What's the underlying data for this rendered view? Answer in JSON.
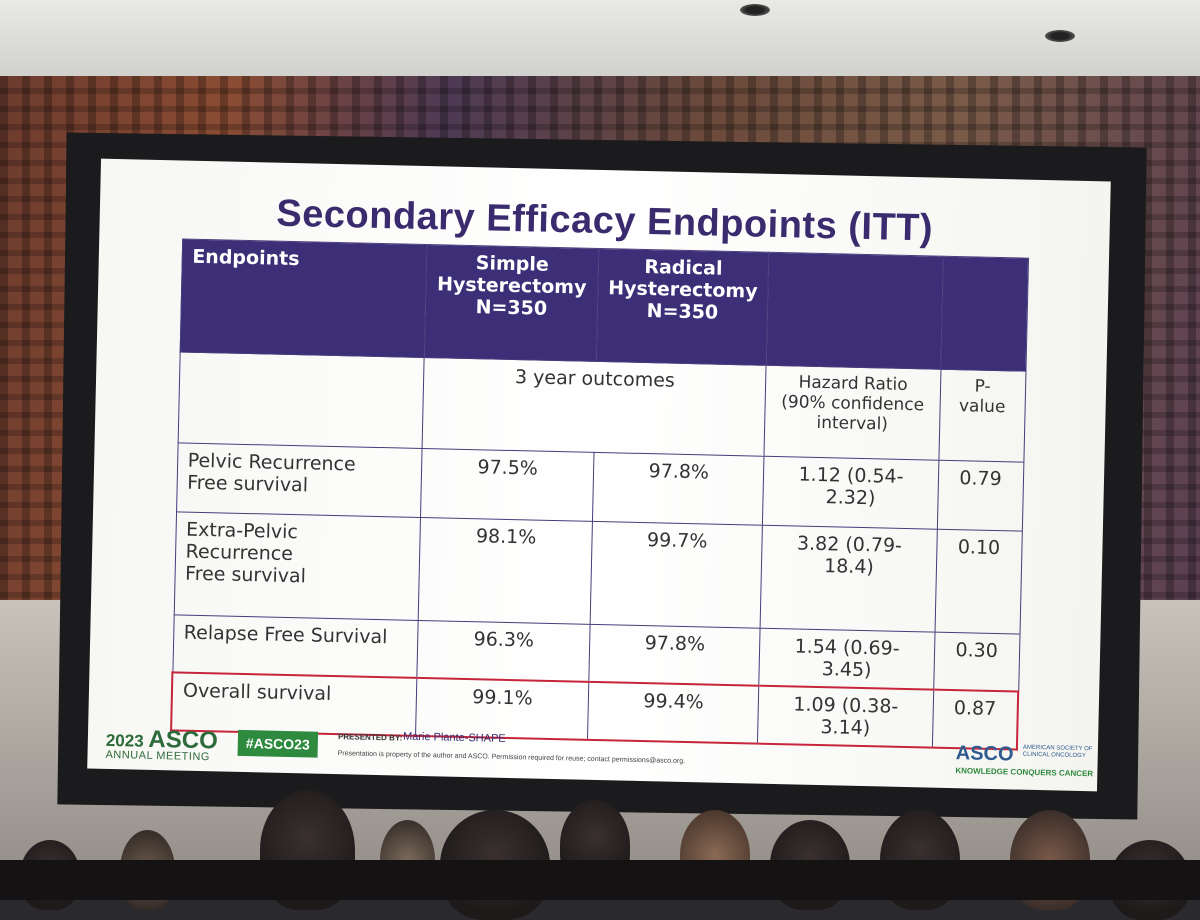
{
  "slide": {
    "title": "Secondary Efficacy Endpoints (ITT)",
    "table": {
      "headers": {
        "endpoints": "Endpoints",
        "simple": [
          "Simple",
          "Hysterectomy",
          "N=350"
        ],
        "radical": [
          "Radical",
          "Hysterectomy",
          "N=350"
        ]
      },
      "subheaders": {
        "outcomes": "3 year outcomes",
        "hazard_ratio": [
          "Hazard Ratio",
          "(90% confidence",
          "interval)"
        ],
        "p_value": [
          "P-",
          "value"
        ]
      },
      "rows": [
        {
          "endpoint": [
            "Pelvic Recurrence",
            "Free survival"
          ],
          "simple": "97.5%",
          "radical": "97.8%",
          "hr": "1.12 (0.54-2.32)",
          "p": "0.79"
        },
        {
          "endpoint": [
            "Extra-Pelvic",
            "Recurrence",
            "Free survival"
          ],
          "simple": "98.1%",
          "radical": "99.7%",
          "hr": "3.82 (0.79-18.4)",
          "p": "0.10"
        },
        {
          "endpoint": [
            "Relapse Free Survival"
          ],
          "simple": "96.3%",
          "radical": "97.8%",
          "hr": "1.54 (0.69-3.45)",
          "p": "0.30"
        },
        {
          "endpoint": [
            "Overall survival"
          ],
          "simple": "99.1%",
          "radical": "99.4%",
          "hr": "1.09 (0.38-3.14)",
          "p": "0.87"
        }
      ]
    },
    "footer": {
      "year": "2023",
      "brand": "ASCO",
      "meeting": "ANNUAL MEETING",
      "hashtag": "#ASCO23",
      "presented_by_label": "PRESENTED BY:",
      "presenter": "Marie Plante-SHAPE",
      "disclaimer": "Presentation is property of the author and ASCO. Permission required for reuse; contact permissions@asco.org.",
      "logo": "ASCO",
      "society": "AMERICAN SOCIETY OF CLINICAL ONCOLOGY",
      "tagline": "KNOWLEDGE CONQUERS CANCER"
    }
  },
  "colors": {
    "header_bg": "#3c2f78",
    "title": "#3a2a6e",
    "highlight_border": "#c8243a",
    "hashtag_bg": "#2e8a3e"
  }
}
